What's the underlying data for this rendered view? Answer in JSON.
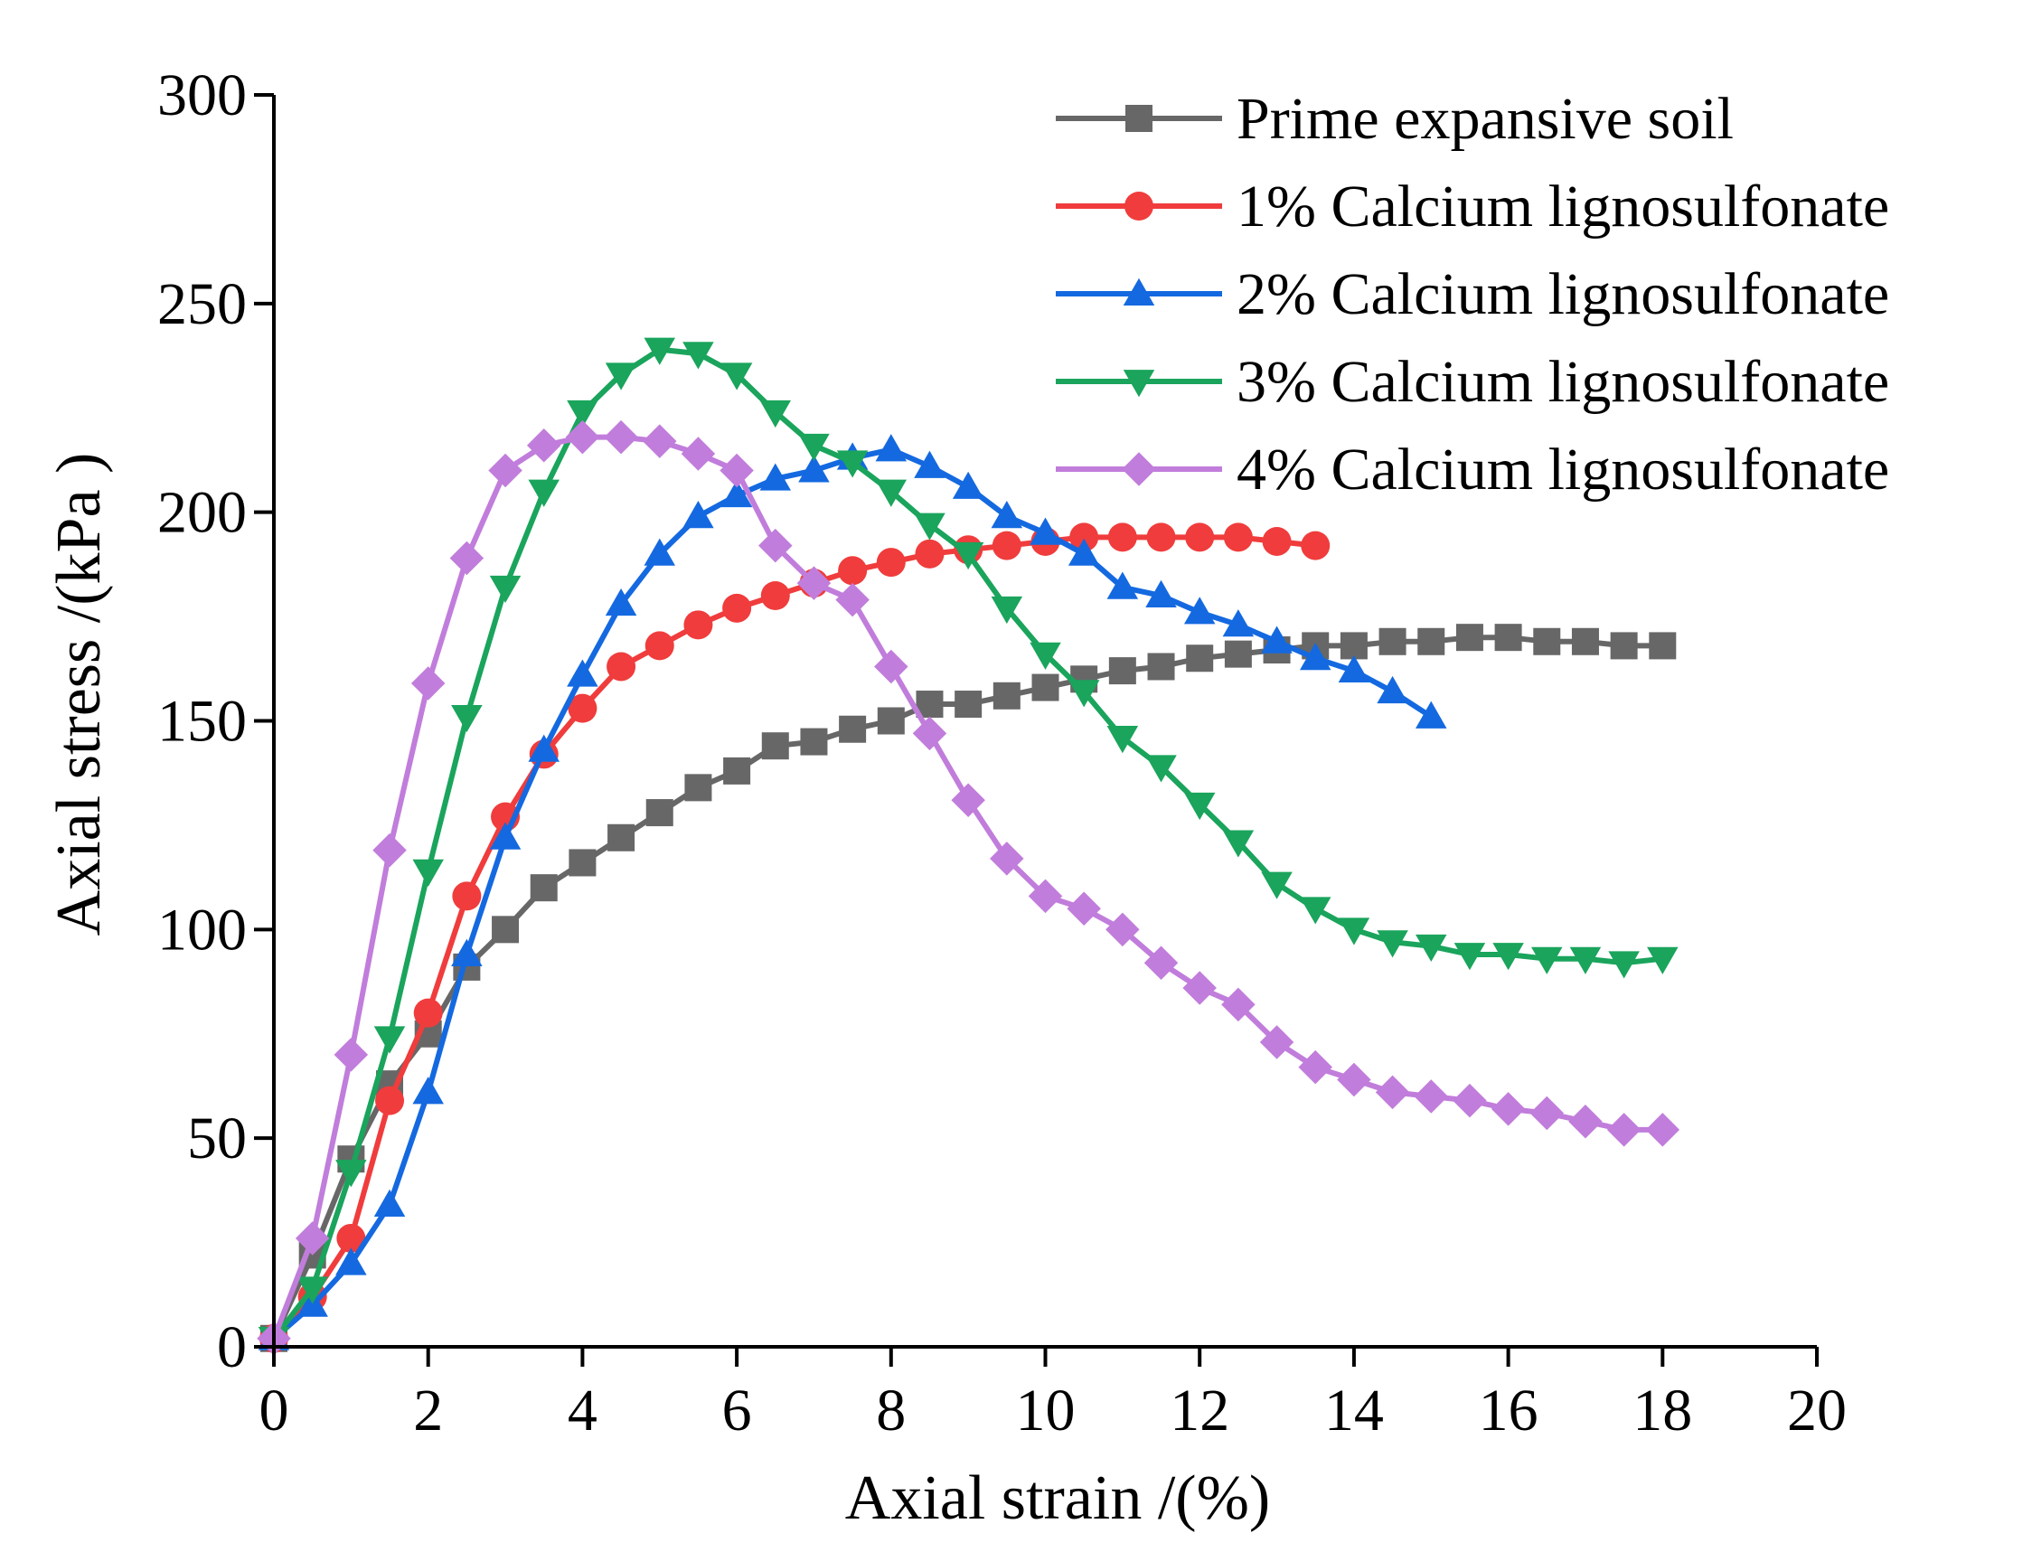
{
  "chart_data": {
    "type": "line",
    "title": "",
    "xlabel": "Axial strain /(%)",
    "ylabel": "Axial stress /(kPa )",
    "xlim": [
      0,
      20
    ],
    "ylim": [
      0,
      300
    ],
    "xticks": [
      0,
      2,
      4,
      6,
      8,
      10,
      12,
      14,
      16,
      18,
      20
    ],
    "yticks": [
      0,
      50,
      100,
      150,
      200,
      250,
      300
    ],
    "legend_position": "top-right",
    "grid": false,
    "series": [
      {
        "name": "Prime expansive soil",
        "color": "#676767",
        "marker": "square",
        "x": [
          0,
          0.5,
          1,
          1.5,
          2,
          2.5,
          3,
          3.5,
          4,
          4.5,
          5,
          5.5,
          6,
          6.5,
          7,
          7.5,
          8,
          8.5,
          9,
          9.5,
          10,
          10.5,
          11,
          11.5,
          12,
          12.5,
          13,
          13.5,
          14,
          14.5,
          15,
          15.5,
          16,
          16.5,
          17,
          17.5,
          18
        ],
        "y": [
          2,
          22,
          45,
          63,
          75,
          91,
          100,
          110,
          116,
          122,
          128,
          134,
          138,
          144,
          145,
          148,
          150,
          154,
          154,
          156,
          158,
          160,
          162,
          163,
          165,
          166,
          167,
          168,
          168,
          169,
          169,
          170,
          170,
          169,
          169,
          168,
          168
        ]
      },
      {
        "name": "1% Calcium lignosulfonate",
        "color": "#f03c3c",
        "marker": "circle",
        "x": [
          0,
          0.5,
          1,
          1.5,
          2,
          2.5,
          3,
          3.5,
          4,
          4.5,
          5,
          5.5,
          6,
          6.5,
          7,
          7.5,
          8,
          8.5,
          9,
          9.5,
          10,
          10.5,
          11,
          11.5,
          12,
          12.5,
          13,
          13.5
        ],
        "y": [
          2,
          12,
          26,
          59,
          80,
          108,
          127,
          142,
          153,
          163,
          168,
          173,
          177,
          180,
          183,
          186,
          188,
          190,
          191,
          192,
          193,
          194,
          194,
          194,
          194,
          194,
          193,
          192
        ]
      },
      {
        "name": "2% Calcium lignosulfonate",
        "color": "#1469e0",
        "marker": "triangle-up",
        "x": [
          0,
          0.5,
          1,
          1.5,
          2,
          2.5,
          3,
          3.5,
          4,
          4.5,
          5,
          5.5,
          6,
          6.5,
          7,
          7.5,
          8,
          8.5,
          9,
          9.5,
          10,
          10.5,
          11,
          11.5,
          12,
          12.5,
          13,
          13.5,
          14,
          14.5,
          15
        ],
        "y": [
          2,
          10,
          20,
          34,
          61,
          94,
          122,
          143,
          161,
          178,
          190,
          199,
          204,
          208,
          210,
          213,
          215,
          211,
          206,
          199,
          195,
          190,
          182,
          180,
          176,
          173,
          169,
          165,
          162,
          157,
          151
        ]
      },
      {
        "name": "3% Calcium lignosulfonate",
        "color": "#1aa45c",
        "marker": "triangle-down",
        "x": [
          0,
          0.5,
          1,
          1.5,
          2,
          2.5,
          3,
          3.5,
          4,
          4.5,
          5,
          5.5,
          6,
          6.5,
          7,
          7.5,
          8,
          8.5,
          9,
          9.5,
          10,
          10.5,
          11,
          11.5,
          12,
          12.5,
          13,
          13.5,
          14,
          14.5,
          15,
          15.5,
          16,
          16.5,
          17,
          17.5,
          18
        ],
        "y": [
          2,
          14,
          42,
          74,
          114,
          151,
          182,
          205,
          224,
          233,
          239,
          238,
          233,
          224,
          216,
          212,
          205,
          197,
          190,
          177,
          166,
          157,
          146,
          139,
          130,
          121,
          111,
          105,
          100,
          97,
          96,
          94,
          94,
          93,
          93,
          92,
          93
        ]
      },
      {
        "name": "4% Calcium lignosulfonate",
        "color": "#c17ddb",
        "marker": "diamond",
        "x": [
          0,
          0.5,
          1,
          1.5,
          2,
          2.5,
          3,
          3.5,
          4,
          4.5,
          5,
          5.5,
          6,
          6.5,
          7,
          7.5,
          8,
          8.5,
          9,
          9.5,
          10,
          10.5,
          11,
          11.5,
          12,
          12.5,
          13,
          13.5,
          14,
          14.5,
          15,
          15.5,
          16,
          16.5,
          17,
          17.5,
          18
        ],
        "y": [
          2,
          26,
          70,
          119,
          159,
          189,
          210,
          216,
          218,
          218,
          217,
          214,
          210,
          192,
          183,
          179,
          163,
          147,
          131,
          117,
          108,
          105,
          100,
          92,
          86,
          82,
          73,
          67,
          64,
          61,
          60,
          59,
          57,
          56,
          54,
          52,
          52
        ]
      }
    ]
  }
}
